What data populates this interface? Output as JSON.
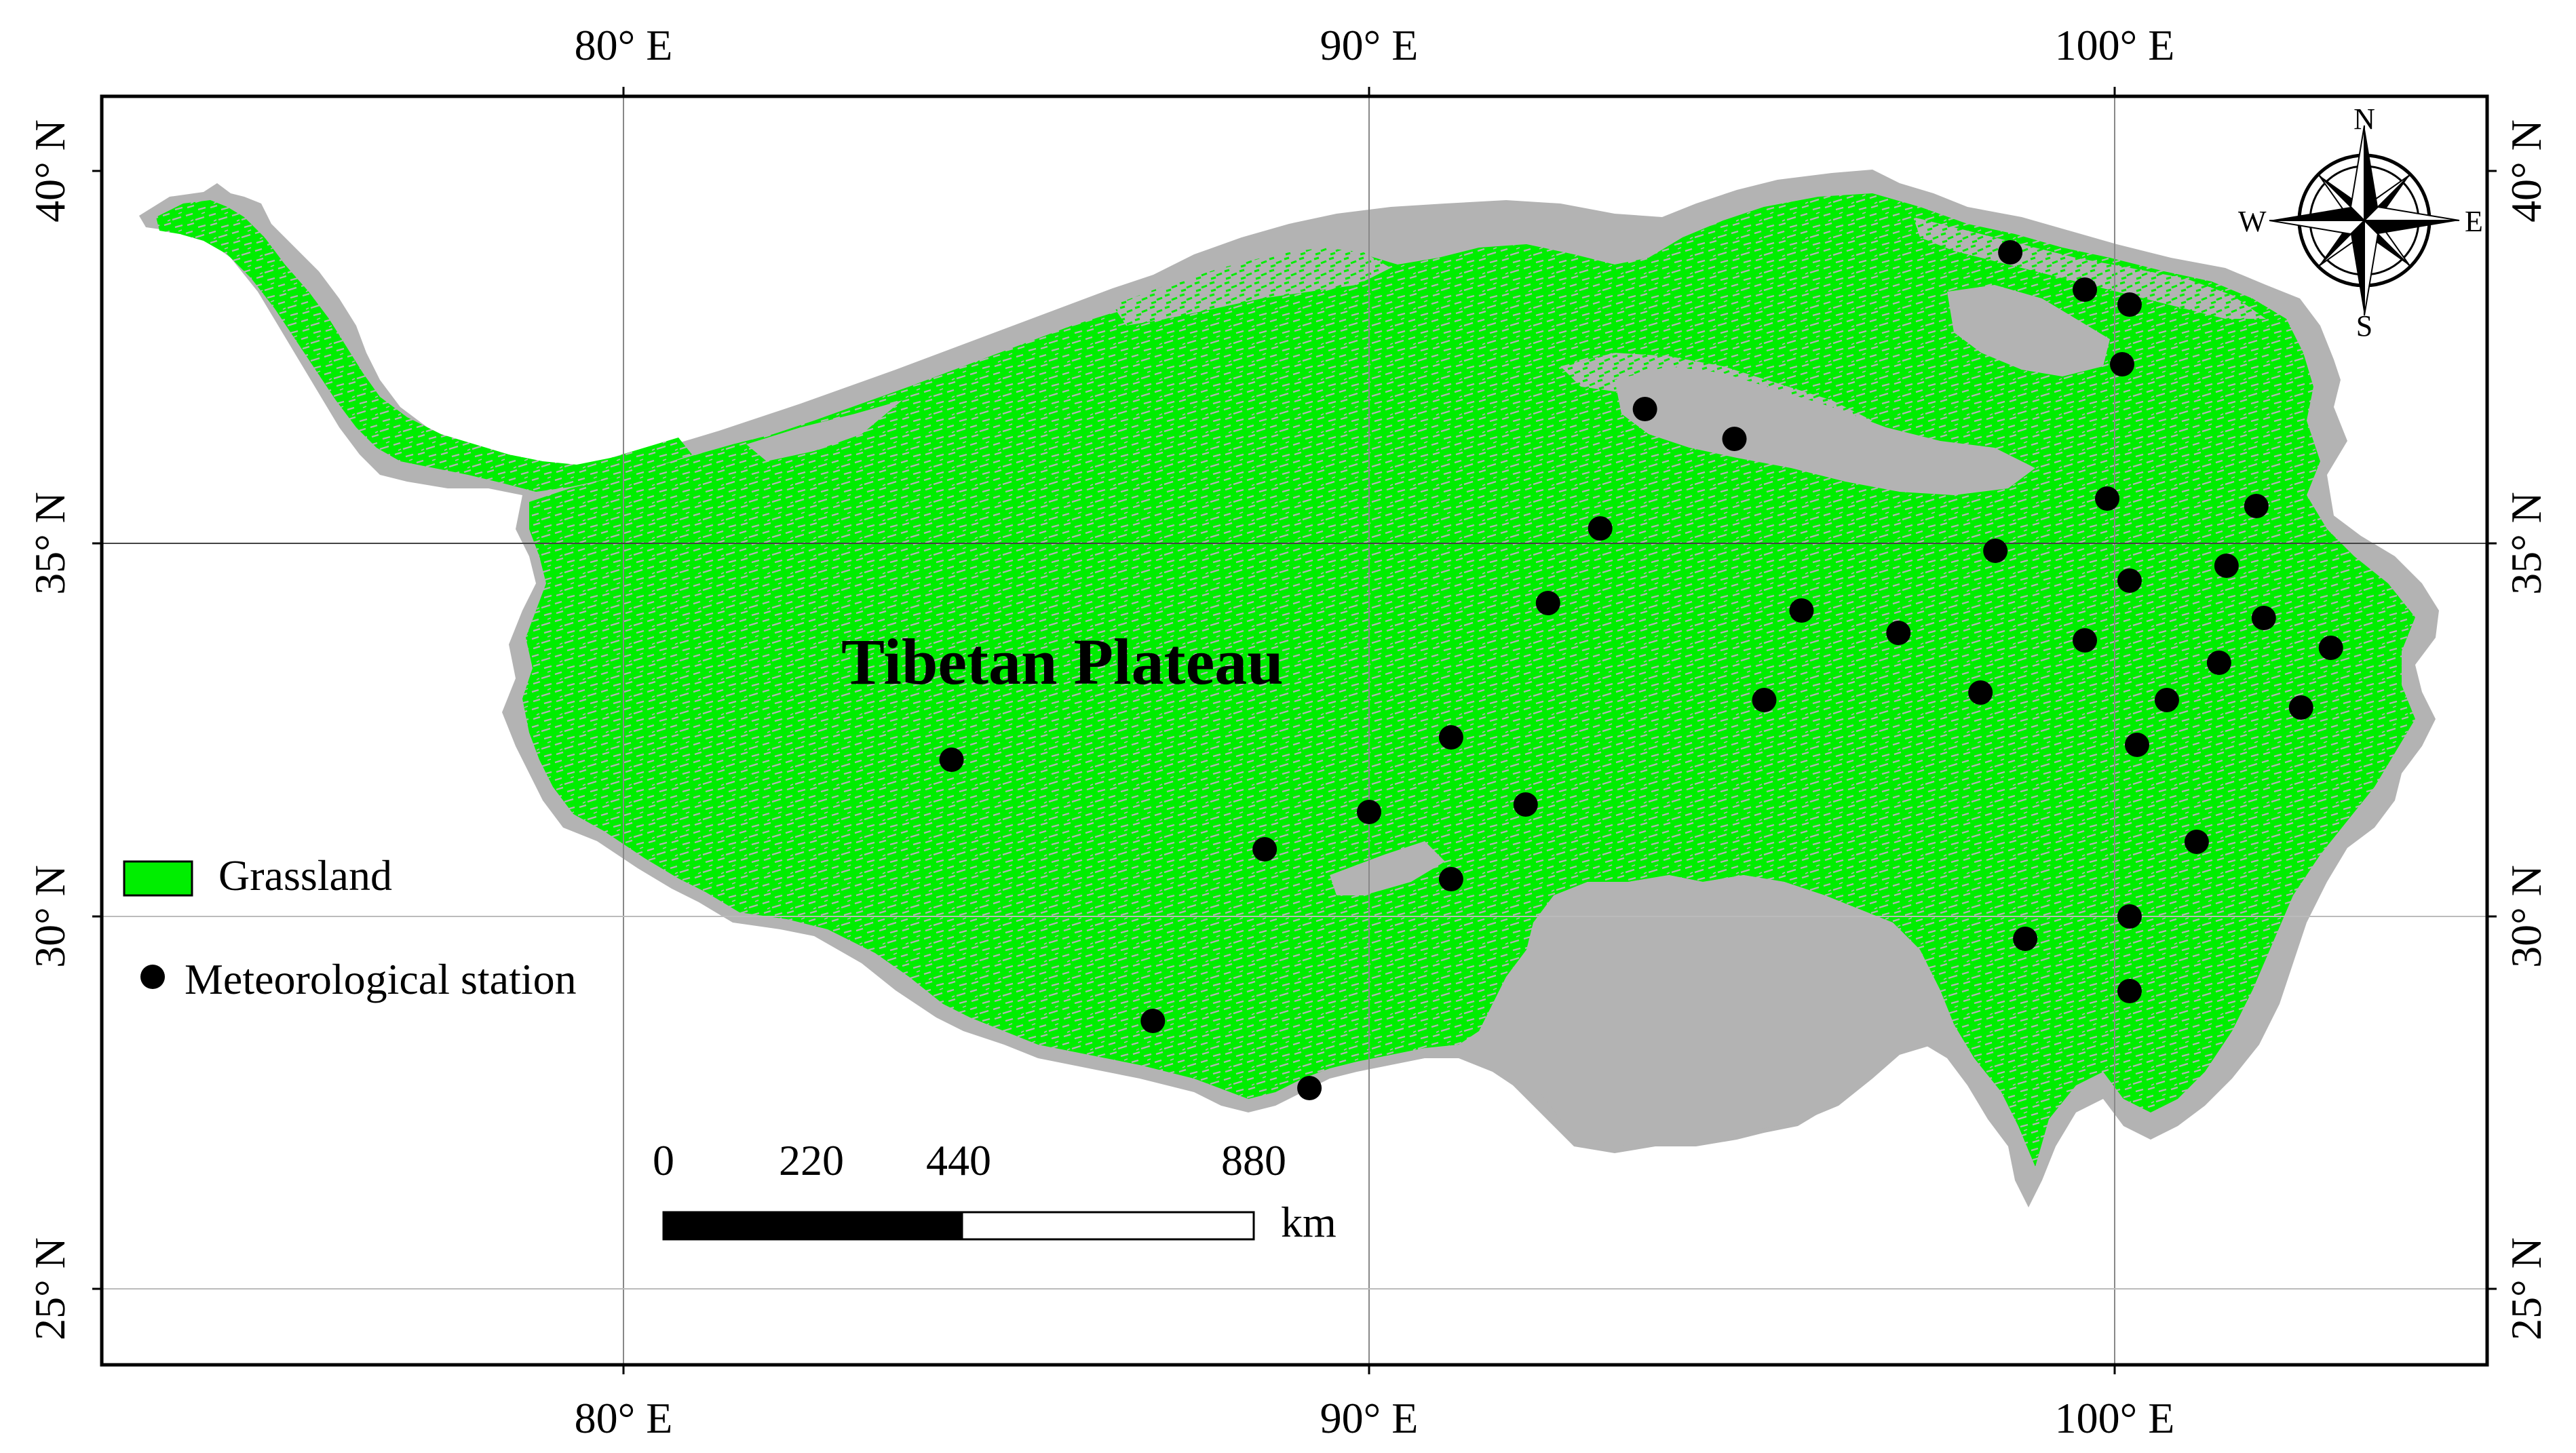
{
  "map": {
    "title": "Tibetan Plateau",
    "legend": {
      "grassland_label": "Grassland",
      "station_label": "Meteorological station"
    },
    "compass": {
      "n": "N",
      "s": "S",
      "e": "E",
      "w": "W"
    },
    "scale_bar": {
      "ticks": [
        "0",
        "220",
        "440",
        "880"
      ],
      "unit": "km"
    },
    "longitude_labels": [
      "80° E",
      "90° E",
      "100° E"
    ],
    "latitude_labels": [
      "40° N",
      "35° N",
      "30° N",
      "25° N"
    ],
    "colors": {
      "grassland": "#00ee00",
      "non_grassland": "#b3b3b3",
      "station": "#000000",
      "gridline": "#888888"
    },
    "stations": [
      {
        "lon": 98.6,
        "lat": 38.9
      },
      {
        "lon": 99.6,
        "lat": 38.4
      },
      {
        "lon": 100.2,
        "lat": 38.2
      },
      {
        "lon": 100.1,
        "lat": 37.4
      },
      {
        "lon": 93.7,
        "lat": 36.8
      },
      {
        "lon": 94.9,
        "lat": 36.4
      },
      {
        "lon": 99.9,
        "lat": 35.6
      },
      {
        "lon": 101.9,
        "lat": 35.5
      },
      {
        "lon": 93.1,
        "lat": 35.2
      },
      {
        "lon": 98.4,
        "lat": 34.9
      },
      {
        "lon": 101.5,
        "lat": 34.7
      },
      {
        "lon": 100.2,
        "lat": 34.5
      },
      {
        "lon": 92.4,
        "lat": 34.2
      },
      {
        "lon": 95.8,
        "lat": 34.1
      },
      {
        "lon": 102.0,
        "lat": 34.0
      },
      {
        "lon": 97.1,
        "lat": 33.8
      },
      {
        "lon": 99.6,
        "lat": 33.7
      },
      {
        "lon": 102.9,
        "lat": 33.6
      },
      {
        "lon": 101.4,
        "lat": 33.4
      },
      {
        "lon": 98.2,
        "lat": 33.0
      },
      {
        "lon": 95.3,
        "lat": 32.9
      },
      {
        "lon": 100.7,
        "lat": 32.9
      },
      {
        "lon": 102.5,
        "lat": 32.8
      },
      {
        "lon": 91.1,
        "lat": 32.4
      },
      {
        "lon": 100.3,
        "lat": 32.3
      },
      {
        "lon": 84.4,
        "lat": 32.1
      },
      {
        "lon": 92.1,
        "lat": 31.5
      },
      {
        "lon": 90.0,
        "lat": 31.4
      },
      {
        "lon": 88.6,
        "lat": 30.9
      },
      {
        "lon": 101.1,
        "lat": 31.0
      },
      {
        "lon": 91.1,
        "lat": 30.5
      },
      {
        "lon": 100.2,
        "lat": 30.0
      },
      {
        "lon": 98.8,
        "lat": 29.7
      },
      {
        "lon": 100.2,
        "lat": 29.0
      },
      {
        "lon": 87.1,
        "lat": 28.6
      },
      {
        "lon": 89.2,
        "lat": 27.7
      }
    ]
  }
}
